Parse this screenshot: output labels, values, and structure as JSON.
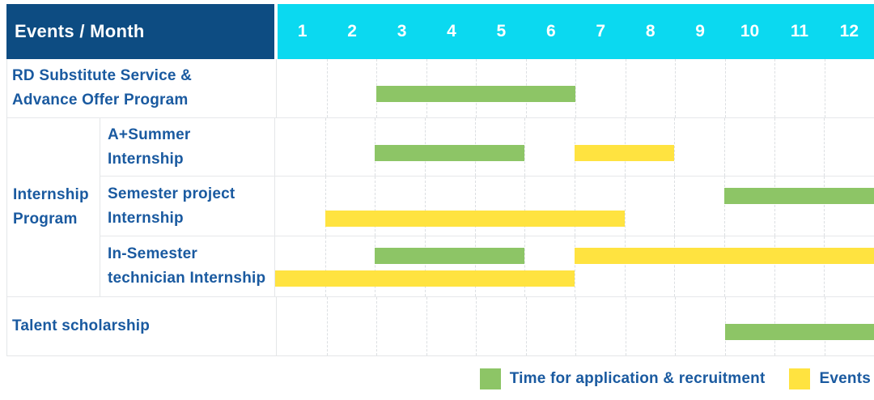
{
  "header": {
    "label": "Events / Month",
    "months": [
      "1",
      "2",
      "3",
      "4",
      "5",
      "6",
      "7",
      "8",
      "9",
      "10",
      "11",
      "12"
    ]
  },
  "rows": {
    "rd": {
      "line1": "RD Substitute Service &",
      "line2": "Advance Offer Program"
    },
    "group": {
      "line1": "Internship",
      "line2": "Program"
    },
    "summer": {
      "line1": "A+Summer",
      "line2": "Internship"
    },
    "semester_project": {
      "line1": "Semester project",
      "line2": "Internship"
    },
    "in_semester": {
      "line1": "In-Semester",
      "line2": "technician Internship"
    },
    "talent": {
      "line1": "Talent scholarship"
    }
  },
  "chart_data": {
    "type": "gantt",
    "title": "Events / Month",
    "months_count": 12,
    "month_labels": [
      "1",
      "2",
      "3",
      "4",
      "5",
      "6",
      "7",
      "8",
      "9",
      "10",
      "11",
      "12"
    ],
    "palette": {
      "application": "#8DC566",
      "event": "#FFE340"
    },
    "tasks": [
      {
        "id": "rd",
        "name": "RD Substitute Service & Advance Offer Program",
        "group": null,
        "bars": [
          {
            "kind": "application",
            "start": 3,
            "end": 6,
            "lane": "single"
          }
        ]
      },
      {
        "id": "summer",
        "name": "A+Summer Internship",
        "group": "Internship Program",
        "bars": [
          {
            "kind": "application",
            "start": 3,
            "end": 5,
            "lane": "single"
          },
          {
            "kind": "event",
            "start": 7,
            "end": 8,
            "lane": "single"
          }
        ]
      },
      {
        "id": "semester_project",
        "name": "Semester project Internship",
        "group": "Internship Program",
        "bars": [
          {
            "kind": "application",
            "start": 10,
            "end": 12,
            "lane": "top"
          },
          {
            "kind": "event",
            "start": 2,
            "end": 7,
            "lane": "bottom"
          }
        ]
      },
      {
        "id": "in_semester",
        "name": "In-Semester technician Internship",
        "group": "Internship Program",
        "bars": [
          {
            "kind": "application",
            "start": 3,
            "end": 5,
            "lane": "top"
          },
          {
            "kind": "event",
            "start": 7,
            "end": 12,
            "lane": "top"
          },
          {
            "kind": "event",
            "start": 1,
            "end": 6,
            "lane": "bottom"
          }
        ]
      },
      {
        "id": "talent",
        "name": "Talent scholarship",
        "group": null,
        "bars": [
          {
            "kind": "application",
            "start": 10,
            "end": 12,
            "lane": "single"
          }
        ]
      }
    ],
    "legend": [
      {
        "label": "Time for application & recruitment",
        "color": "#8DC566",
        "kind": "application"
      },
      {
        "label": "Events",
        "color": "#FFE340",
        "kind": "event"
      }
    ]
  },
  "colors": {
    "header_navy": "#0D4C82",
    "header_cyan": "#0BD9F0",
    "application_green": "#8DC566",
    "event_yellow": "#FFE340",
    "label_blue": "#1A5AA0"
  }
}
